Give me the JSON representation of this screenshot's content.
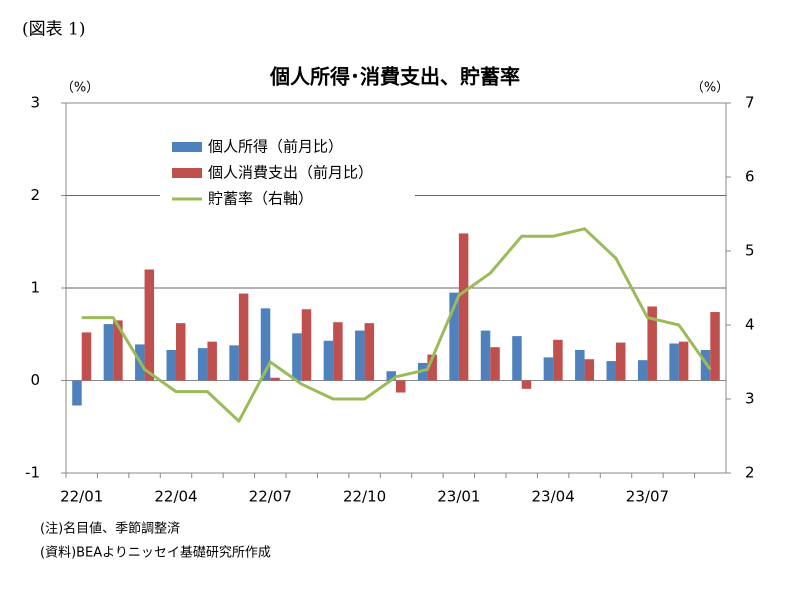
{
  "chart_data": {
    "type": "bar-line",
    "figure_label": "(図表 1)",
    "title": "個人所得･消費支出、貯蓄率",
    "y_label": "（%）",
    "y2_label": "（%）",
    "categories": [
      "22/01",
      null,
      null,
      "22/04",
      null,
      null,
      "22/07",
      null,
      null,
      "22/10",
      null,
      null,
      "23/01",
      null,
      null,
      "23/04",
      null,
      null,
      "23/07",
      null,
      null
    ],
    "series": [
      {
        "name": "個人所得（前月比）",
        "type": "bar",
        "color": "#4f81bd",
        "values": [
          -0.27,
          0.61,
          0.39,
          0.33,
          0.35,
          0.38,
          0.78,
          0.51,
          0.43,
          0.54,
          0.1,
          0.19,
          0.95,
          0.54,
          0.48,
          0.25,
          0.33,
          0.21,
          0.22,
          0.4,
          0.33
        ]
      },
      {
        "name": "個人消費支出（前月比）",
        "type": "bar",
        "color": "#c0504d",
        "values": [
          0.52,
          0.65,
          1.2,
          0.62,
          0.42,
          0.94,
          0.03,
          0.77,
          0.63,
          0.62,
          -0.13,
          0.28,
          1.59,
          0.36,
          -0.09,
          0.44,
          0.23,
          0.41,
          0.8,
          0.42,
          0.74
        ]
      },
      {
        "name": "貯蓄率（右軸）",
        "type": "line",
        "axis": "y2",
        "color": "#9bbb59",
        "values": [
          4.1,
          4.1,
          3.4,
          3.1,
          3.1,
          2.7,
          3.5,
          3.2,
          3.0,
          3.0,
          3.3,
          3.4,
          4.4,
          4.7,
          5.2,
          5.2,
          5.3,
          4.9,
          4.1,
          4.0,
          3.4
        ]
      }
    ],
    "ylim": [
      -1,
      3
    ],
    "yticks": [
      -1,
      0,
      1,
      2,
      3
    ],
    "y2lim": [
      2,
      7
    ],
    "y2ticks": [
      2,
      3,
      4,
      5,
      6,
      7
    ],
    "grid": true,
    "legend": "upper-left",
    "notes": [
      "(注)名目値、季節調整済",
      "(資料)BEAよりニッセイ基礎研究所作成"
    ]
  }
}
